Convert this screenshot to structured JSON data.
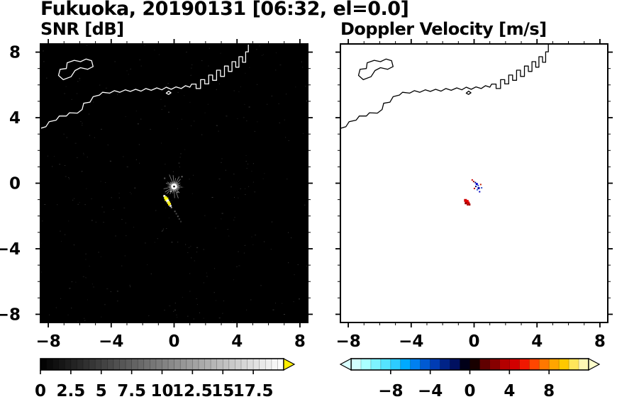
{
  "title": "Fukuoka, 20190131 [06:32, el=0.0]",
  "colors": {
    "frame": "#000000",
    "text": "#000000",
    "page_background": "#ffffff"
  },
  "chart_data": [
    {
      "type": "heatmap",
      "name": "snr",
      "title": "SNR [dB]",
      "background": "#000000",
      "coast_color": "#ffffff",
      "xlim": [
        -8.5,
        8.5
      ],
      "ylim": [
        -8.5,
        8.5
      ],
      "grid": false,
      "x_ticks": {
        "values": [
          -8,
          -4,
          0,
          4,
          8
        ],
        "labels": [
          "−8",
          "−4",
          "0",
          "4",
          "8"
        ]
      },
      "y_ticks": {
        "values": [
          -8,
          -4,
          0,
          4,
          8
        ],
        "labels": [
          "8",
          "4",
          "0",
          "−4",
          "−8"
        ],
        "show": true
      },
      "minor_tick_step": 1,
      "radar_center": {
        "x": 0.0,
        "y": -0.2
      },
      "noise": {
        "count": 320,
        "seed": 7,
        "colors": [
          "#1c1c1c",
          "#2a2a2a",
          "#383838"
        ]
      },
      "echo_points": [
        {
          "x": -0.62,
          "y": -0.78,
          "c": "#e0e0e0",
          "s": 3
        },
        {
          "x": -0.55,
          "y": -0.88,
          "c": "#ffff33",
          "s": 4
        },
        {
          "x": -0.48,
          "y": -0.98,
          "c": "#ffff00",
          "s": 5
        },
        {
          "x": -0.41,
          "y": -1.08,
          "c": "#ffffff",
          "s": 4
        },
        {
          "x": -0.35,
          "y": -1.18,
          "c": "#ffff44",
          "s": 4
        },
        {
          "x": -0.29,
          "y": -1.28,
          "c": "#ffee00",
          "s": 4
        },
        {
          "x": -0.23,
          "y": -1.38,
          "c": "#cfcfcf",
          "s": 3
        },
        {
          "x": -0.17,
          "y": -1.48,
          "c": "#999999",
          "s": 2
        },
        {
          "x": 0.05,
          "y": -1.72,
          "c": "#585858",
          "s": 2
        },
        {
          "x": 0.14,
          "y": -1.86,
          "c": "#4a4a4a",
          "s": 2
        },
        {
          "x": 0.24,
          "y": -2.02,
          "c": "#565656",
          "s": 2
        },
        {
          "x": 0.33,
          "y": -2.18,
          "c": "#3e3e3e",
          "s": 2
        },
        {
          "x": 0.43,
          "y": -2.34,
          "c": "#343434",
          "s": 2
        },
        {
          "x": -0.2,
          "y": -0.5,
          "c": "#bdbdbd",
          "s": 2
        },
        {
          "x": 0.22,
          "y": -0.55,
          "c": "#8a8a8a",
          "s": 2
        },
        {
          "x": 0.5,
          "y": 0.4,
          "c": "#6a6a6a",
          "s": 2
        },
        {
          "x": -0.6,
          "y": 0.3,
          "c": "#5a5a5a",
          "s": 2
        }
      ],
      "colorbar": {
        "style": "grayscale",
        "vmin": 0,
        "vmax": 20,
        "step": 0.5,
        "tick_labels": {
          "values": [
            0,
            2.5,
            5,
            7.5,
            10,
            12.5,
            15,
            17.5
          ],
          "labels": [
            "0",
            "2.5",
            "5",
            "7.5",
            "10",
            "12.5",
            "15",
            "17.5"
          ]
        },
        "over_arrow_color": "#ffee00"
      }
    },
    {
      "type": "heatmap",
      "name": "doppler",
      "title": "Doppler Velocity [m/s]",
      "background": "#ffffff",
      "coast_color": "#000000",
      "xlim": [
        -8.5,
        8.5
      ],
      "ylim": [
        -8.5,
        8.5
      ],
      "grid": false,
      "x_ticks": {
        "values": [
          -8,
          -4,
          0,
          4,
          8
        ],
        "labels": [
          "−8",
          "−4",
          "0",
          "4",
          "8"
        ]
      },
      "y_ticks": {
        "values": [
          -8,
          -4,
          0,
          4,
          8
        ],
        "labels": [],
        "show": false
      },
      "minor_tick_step": 1,
      "echo_points": [
        {
          "x": -0.12,
          "y": 0.2,
          "c": "#cc0000",
          "s": 2
        },
        {
          "x": -0.03,
          "y": 0.1,
          "c": "#8b0000",
          "s": 2
        },
        {
          "x": 0.08,
          "y": 0.04,
          "c": "#00008b",
          "s": 2
        },
        {
          "x": 0.17,
          "y": -0.05,
          "c": "#0000cd",
          "s": 3
        },
        {
          "x": 0.26,
          "y": -0.14,
          "c": "#2a4fd6",
          "s": 2
        },
        {
          "x": 0.11,
          "y": -0.2,
          "c": "#000060",
          "s": 2
        },
        {
          "x": 0.29,
          "y": -0.3,
          "c": "#0000a8",
          "s": 3
        },
        {
          "x": 0.2,
          "y": -0.4,
          "c": "#4169e1",
          "s": 2
        },
        {
          "x": 0.02,
          "y": -0.32,
          "c": "#c00000",
          "s": 2
        },
        {
          "x": 0.35,
          "y": -0.52,
          "c": "#0000c0",
          "s": 2
        },
        {
          "x": 0.42,
          "y": -0.08,
          "c": "#c22000",
          "s": 2
        },
        {
          "x": 0.48,
          "y": -0.28,
          "c": "#3050c8",
          "s": 2
        },
        {
          "x": -0.55,
          "y": -1.05,
          "c": "#cc0000",
          "s": 4
        },
        {
          "x": -0.46,
          "y": -1.13,
          "c": "#e60000",
          "s": 5
        },
        {
          "x": -0.37,
          "y": -1.21,
          "c": "#d40000",
          "s": 4
        },
        {
          "x": -0.3,
          "y": -1.3,
          "c": "#a80000",
          "s": 3
        },
        {
          "x": -0.53,
          "y": -1.22,
          "c": "#8e0000",
          "s": 3
        },
        {
          "x": -0.42,
          "y": -1.32,
          "c": "#b40000",
          "s": 2
        }
      ],
      "colorbar": {
        "style": "segments",
        "vmin": -12,
        "vmax": 12,
        "step": 1,
        "tick_labels": {
          "values": [
            -8,
            -4,
            0,
            4,
            8
          ],
          "labels": [
            "−8",
            "−4",
            "0",
            "4",
            "8"
          ]
        },
        "segment_colors": [
          "#d2ffff",
          "#aaffff",
          "#7df2ff",
          "#55e4ff",
          "#2dccff",
          "#00aaff",
          "#0080f0",
          "#005ad2",
          "#003cb4",
          "#002387",
          "#001060",
          "#000018",
          "#180000",
          "#600000",
          "#870000",
          "#b40000",
          "#d20000",
          "#f01800",
          "#ff4600",
          "#ff7800",
          "#ffa500",
          "#ffc800",
          "#ffe65a",
          "#fff8b4"
        ],
        "under_arrow_color": "#d8ffff",
        "over_arrow_color": "#ffffcc"
      }
    }
  ],
  "map_overlay": {
    "coast_polylines": [
      [
        [
          -8.5,
          3.35
        ],
        [
          -8.15,
          3.45
        ],
        [
          -7.95,
          3.75
        ],
        [
          -7.5,
          3.85
        ],
        [
          -7.3,
          4.1
        ],
        [
          -6.85,
          4.1
        ],
        [
          -6.65,
          4.3
        ],
        [
          -6.15,
          4.28
        ],
        [
          -5.85,
          4.5
        ],
        [
          -5.75,
          4.88
        ],
        [
          -5.35,
          4.95
        ],
        [
          -5.15,
          5.28
        ],
        [
          -4.75,
          5.38
        ],
        [
          -4.55,
          5.55
        ],
        [
          -4.1,
          5.5
        ],
        [
          -3.8,
          5.65
        ],
        [
          -3.45,
          5.55
        ],
        [
          -3.1,
          5.7
        ],
        [
          -2.78,
          5.6
        ],
        [
          -2.45,
          5.73
        ],
        [
          -2.1,
          5.62
        ],
        [
          -1.8,
          5.78
        ],
        [
          -1.45,
          5.67
        ],
        [
          -1.1,
          5.82
        ],
        [
          -0.78,
          5.7
        ],
        [
          -0.5,
          5.86
        ],
        [
          -0.18,
          5.73
        ],
        [
          0.12,
          5.88
        ],
        [
          0.45,
          5.78
        ],
        [
          0.72,
          5.95
        ],
        [
          1.0,
          5.86
        ],
        [
          1.12,
          6.05
        ],
        [
          1.4,
          6.05
        ],
        [
          1.4,
          5.78
        ],
        [
          1.68,
          5.78
        ],
        [
          1.68,
          6.32
        ],
        [
          1.95,
          6.32
        ],
        [
          1.95,
          6.06
        ],
        [
          2.2,
          6.06
        ],
        [
          2.2,
          6.6
        ],
        [
          2.45,
          6.6
        ],
        [
          2.45,
          6.28
        ],
        [
          2.7,
          6.28
        ],
        [
          2.7,
          6.9
        ],
        [
          2.95,
          6.9
        ],
        [
          2.95,
          6.52
        ],
        [
          3.2,
          6.52
        ],
        [
          3.2,
          7.15
        ],
        [
          3.45,
          7.15
        ],
        [
          3.45,
          6.82
        ],
        [
          3.68,
          6.82
        ],
        [
          3.68,
          7.42
        ],
        [
          3.92,
          7.42
        ],
        [
          3.92,
          7.08
        ],
        [
          4.12,
          7.08
        ],
        [
          4.12,
          7.72
        ],
        [
          4.35,
          7.72
        ],
        [
          4.35,
          7.38
        ],
        [
          4.55,
          7.38
        ],
        [
          4.55,
          8.02
        ],
        [
          4.72,
          8.02
        ],
        [
          4.72,
          8.5
        ]
      ]
    ],
    "islands": [
      [
        [
          -7.05,
          6.32
        ],
        [
          -7.35,
          6.58
        ],
        [
          -7.25,
          6.95
        ],
        [
          -6.85,
          7.0
        ],
        [
          -6.8,
          7.35
        ],
        [
          -6.35,
          7.5
        ],
        [
          -5.95,
          7.42
        ],
        [
          -5.6,
          7.58
        ],
        [
          -5.25,
          7.48
        ],
        [
          -5.15,
          7.12
        ],
        [
          -5.5,
          6.95
        ],
        [
          -5.95,
          7.05
        ],
        [
          -6.3,
          6.88
        ],
        [
          -6.55,
          6.5
        ],
        [
          -7.05,
          6.32
        ]
      ],
      [
        [
          -0.5,
          5.5
        ],
        [
          -0.35,
          5.62
        ],
        [
          -0.2,
          5.52
        ],
        [
          -0.35,
          5.42
        ],
        [
          -0.5,
          5.5
        ]
      ]
    ]
  }
}
